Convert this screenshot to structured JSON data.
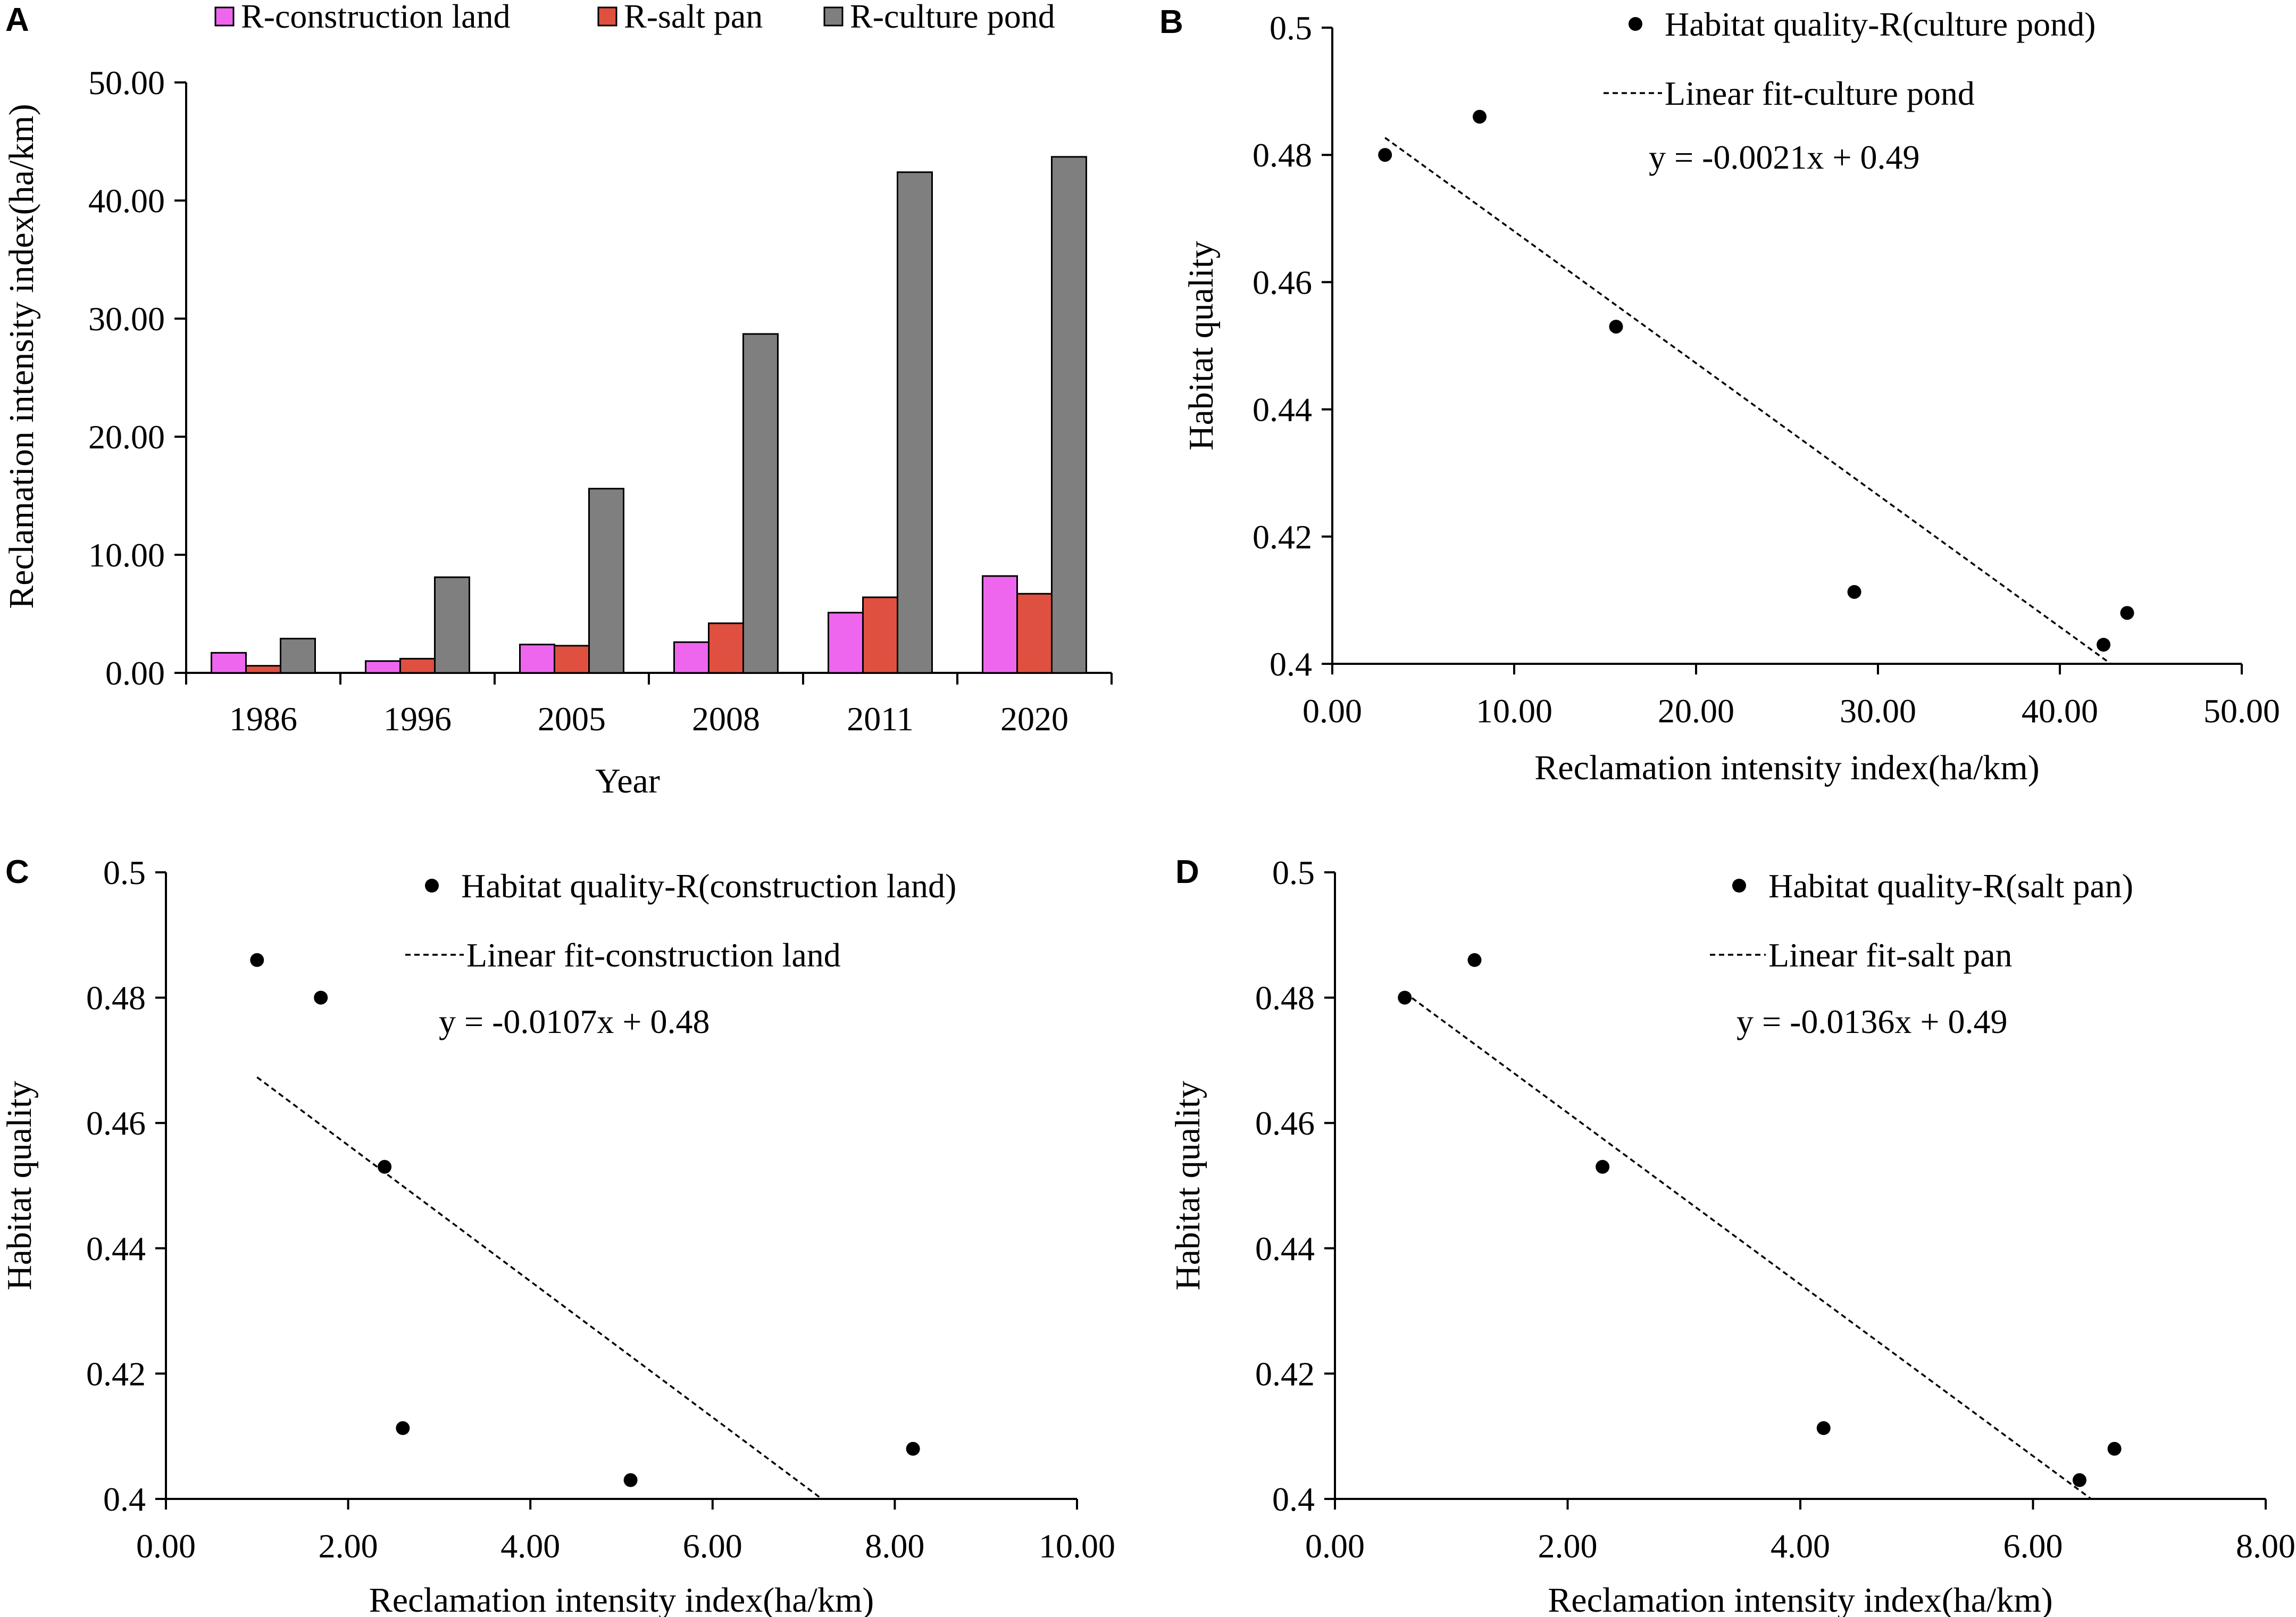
{
  "chart_data": [
    {
      "panel": "A",
      "type": "bar",
      "xlabel": "Year",
      "ylabel": "Reclamation intensity index(ha/km)",
      "ylim": [
        0,
        50
      ],
      "yticks": [
        "0.00",
        "10.00",
        "20.00",
        "30.00",
        "40.00",
        "50.00"
      ],
      "categories": [
        "1986",
        "1996",
        "2005",
        "2008",
        "2011",
        "2020"
      ],
      "series": [
        {
          "name": "R-construction land",
          "color": "#ee66ee",
          "values": [
            1.7,
            1.0,
            2.4,
            2.6,
            5.1,
            8.2
          ]
        },
        {
          "name": "R-salt pan",
          "color": "#e05040",
          "values": [
            0.6,
            1.2,
            2.3,
            4.2,
            6.4,
            6.7
          ]
        },
        {
          "name": "R-culture pond",
          "color": "#7f7f7f",
          "values": [
            2.9,
            8.1,
            15.6,
            28.7,
            42.4,
            43.7
          ]
        }
      ]
    },
    {
      "panel": "B",
      "type": "scatter",
      "xlabel": "Reclamation intensity index(ha/km)",
      "ylabel": "Habitat quality",
      "xlim": [
        0,
        50
      ],
      "ylim": [
        0.4,
        0.5
      ],
      "xticks": [
        "0.00",
        "10.00",
        "20.00",
        "30.00",
        "40.00",
        "50.00"
      ],
      "yticks": [
        "0.4",
        "0.42",
        "0.44",
        "0.46",
        "0.48",
        "0.5"
      ],
      "legend_points": "Habitat quality-R(culture pond)",
      "legend_fit": "Linear fit-culture pond",
      "equation": "y = -0.0021x + 0.49",
      "x": [
        2.9,
        8.1,
        15.6,
        28.7,
        42.4,
        43.7
      ],
      "y": [
        0.48,
        0.486,
        0.453,
        0.4113,
        0.403,
        0.408
      ],
      "fit_line": {
        "x": [
          2.9,
          42.8
        ],
        "y": [
          0.4827,
          0.4
        ]
      }
    },
    {
      "panel": "C",
      "type": "scatter",
      "xlabel": "Reclamation intensity index(ha/km)",
      "ylabel": "Habitat quality",
      "xlim": [
        0,
        10
      ],
      "ylim": [
        0.4,
        0.5
      ],
      "xticks": [
        "0.00",
        "2.00",
        "4.00",
        "6.00",
        "8.00",
        "10.00"
      ],
      "yticks": [
        "0.4",
        "0.42",
        "0.44",
        "0.46",
        "0.48",
        "0.5"
      ],
      "legend_points": "Habitat quality-R(construction land)",
      "legend_fit": "Linear fit-construction land",
      "equation": "y = -0.0107x + 0.48",
      "x": [
        1.0,
        1.7,
        2.4,
        2.6,
        5.1,
        8.2
      ],
      "y": [
        0.486,
        0.48,
        0.453,
        0.4113,
        0.403,
        0.408
      ],
      "fit_line": {
        "x": [
          1.0,
          7.2
        ],
        "y": [
          0.4673,
          0.4
        ]
      }
    },
    {
      "panel": "D",
      "type": "scatter",
      "xlabel": "Reclamation intensity index(ha/km)",
      "ylabel": "Habitat quality",
      "xlim": [
        0,
        8
      ],
      "ylim": [
        0.4,
        0.5
      ],
      "xticks": [
        "0.00",
        "2.00",
        "4.00",
        "6.00",
        "8.00"
      ],
      "yticks": [
        "0.4",
        "0.42",
        "0.44",
        "0.46",
        "0.48",
        "0.5"
      ],
      "legend_points": "Habitat quality-R(salt pan)",
      "legend_fit": "Linear fit-salt pan",
      "equation": "y = -0.0136x + 0.49",
      "x": [
        0.6,
        1.2,
        2.3,
        4.2,
        6.4,
        6.7
      ],
      "y": [
        0.48,
        0.486,
        0.453,
        0.4113,
        0.403,
        0.408
      ],
      "fit_line": {
        "x": [
          0.6,
          6.5
        ],
        "y": [
          0.4808,
          0.4
        ]
      }
    }
  ]
}
